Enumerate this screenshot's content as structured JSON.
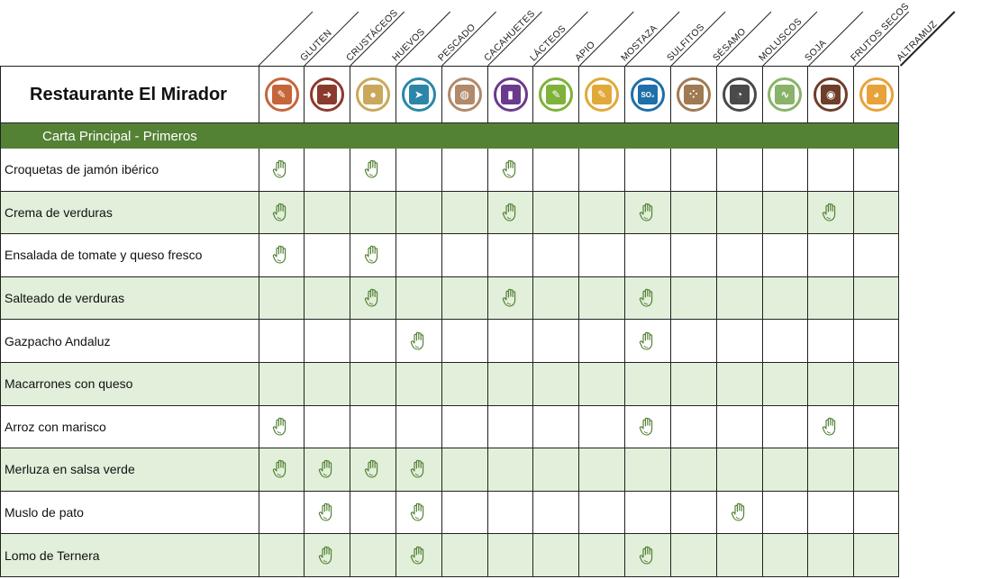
{
  "restaurant_name": "Restaurante El Mirador",
  "section_title": "Carta Principal - Primeros",
  "allergens": [
    {
      "label": "GLUTEN",
      "icon": "wheat-icon",
      "color": "#c5663a",
      "glyph": "✎"
    },
    {
      "label": "CRUSTÁCEOS",
      "icon": "shrimp-icon",
      "color": "#8b3a2e",
      "glyph": "➜"
    },
    {
      "label": "HUEVOS",
      "icon": "egg-icon",
      "color": "#c9a85c",
      "glyph": "●"
    },
    {
      "label": "PESCADO",
      "icon": "fish-icon",
      "color": "#2b86a8",
      "glyph": "➤"
    },
    {
      "label": "CACAHUETES",
      "icon": "peanut-icon",
      "color": "#b08a6a",
      "glyph": "◍"
    },
    {
      "label": "LÁCTEOS",
      "icon": "milk-icon",
      "color": "#6a3a8c",
      "glyph": "▮"
    },
    {
      "label": "APIO",
      "icon": "celery-icon",
      "color": "#7fb23a",
      "glyph": "✎"
    },
    {
      "label": "MOSTAZA",
      "icon": "mustard-icon",
      "color": "#e0a93a",
      "glyph": "✎"
    },
    {
      "label": "SULFITOS",
      "icon": "sulphites-icon",
      "color": "#1f6fa8",
      "glyph": "SO₂"
    },
    {
      "label": "SÉSAMO",
      "icon": "sesame-icon",
      "color": "#a07a52",
      "glyph": "⁘"
    },
    {
      "label": "MOLUSCOS",
      "icon": "mollusc-icon",
      "color": "#4a4a4a",
      "glyph": "◔"
    },
    {
      "label": "SOJA",
      "icon": "soy-icon",
      "color": "#8ab36a",
      "glyph": "∿"
    },
    {
      "label": "FRUTOS SECOS",
      "icon": "nuts-icon",
      "color": "#6e3e2a",
      "glyph": "◉"
    },
    {
      "label": "ALTRAMUZ",
      "icon": "lupin-icon",
      "color": "#e8a23a",
      "glyph": "◕"
    }
  ],
  "dishes": [
    {
      "name": "Croquetas de jamón ibérico",
      "marks": [
        1,
        0,
        1,
        0,
        0,
        1,
        0,
        0,
        0,
        0,
        0,
        0,
        0,
        0
      ]
    },
    {
      "name": "Crema de verduras",
      "marks": [
        1,
        0,
        0,
        0,
        0,
        1,
        0,
        0,
        1,
        0,
        0,
        0,
        1,
        0
      ]
    },
    {
      "name": "Ensalada de tomate y queso fresco",
      "marks": [
        1,
        0,
        1,
        0,
        0,
        0,
        0,
        0,
        0,
        0,
        0,
        0,
        0,
        0
      ]
    },
    {
      "name": "Salteado de verduras",
      "marks": [
        0,
        0,
        1,
        0,
        0,
        1,
        0,
        0,
        1,
        0,
        0,
        0,
        0,
        0
      ]
    },
    {
      "name": "Gazpacho Andaluz",
      "marks": [
        0,
        0,
        0,
        1,
        0,
        0,
        0,
        0,
        1,
        0,
        0,
        0,
        0,
        0
      ]
    },
    {
      "name": "Macarrones con queso",
      "marks": [
        0,
        0,
        0,
        0,
        0,
        0,
        0,
        0,
        0,
        0,
        0,
        0,
        0,
        0
      ]
    },
    {
      "name": "Arroz con marisco",
      "marks": [
        1,
        0,
        0,
        0,
        0,
        0,
        0,
        0,
        1,
        0,
        0,
        0,
        1,
        0
      ]
    },
    {
      "name": "Merluza en salsa verde",
      "marks": [
        1,
        1,
        1,
        1,
        0,
        0,
        0,
        0,
        0,
        0,
        0,
        0,
        0,
        0
      ]
    },
    {
      "name": "Muslo de pato",
      "marks": [
        0,
        1,
        0,
        1,
        0,
        0,
        0,
        0,
        0,
        0,
        1,
        0,
        0,
        0
      ]
    },
    {
      "name": "Lomo de Ternera",
      "marks": [
        0,
        1,
        0,
        1,
        0,
        0,
        0,
        0,
        1,
        0,
        0,
        0,
        0,
        0
      ]
    }
  ],
  "colors": {
    "section_bg": "#548235",
    "alt_row_bg": "#e2efda",
    "hand_stroke": "#4a7a2a"
  }
}
